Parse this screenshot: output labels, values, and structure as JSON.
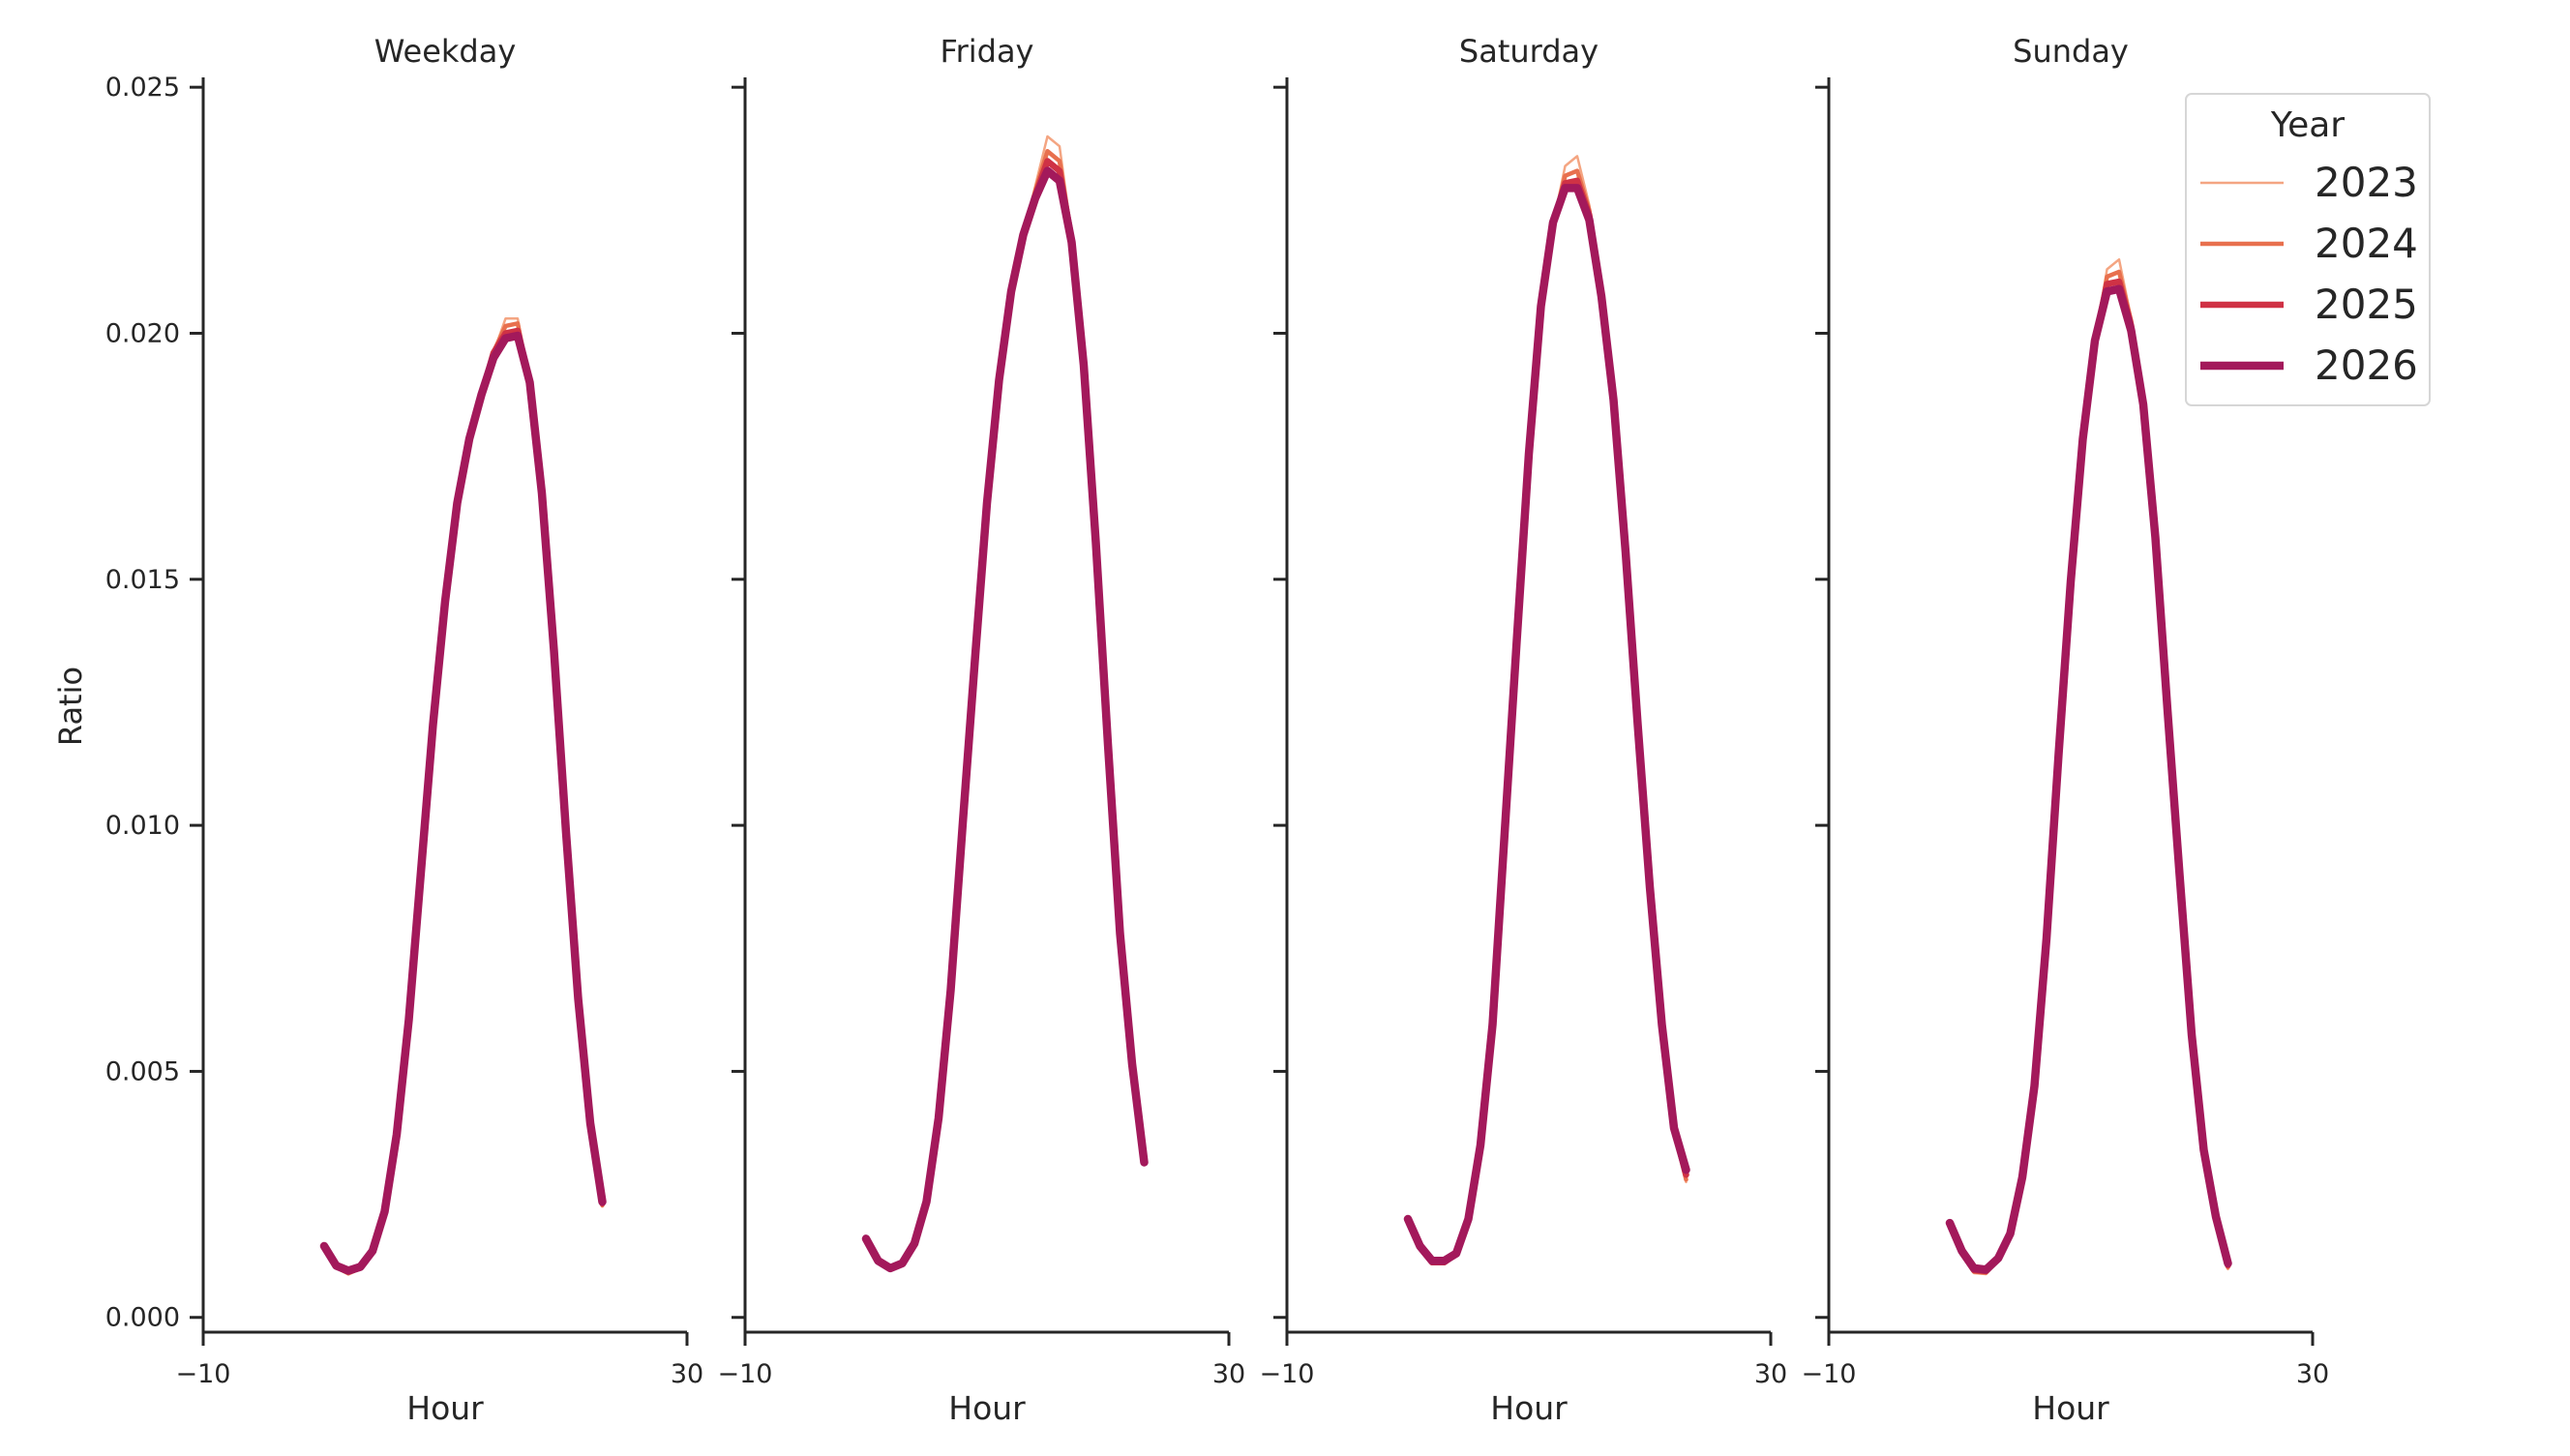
{
  "chart_data": {
    "type": "line",
    "ylabel": "Ratio",
    "ylim": [
      -0.0003,
      0.0252
    ],
    "yticks": [
      0,
      0.005,
      0.01,
      0.015,
      0.02,
      0.025
    ],
    "ytick_labels": [
      "0.000",
      "0.005",
      "0.010",
      "0.015",
      "0.020",
      "0.025"
    ],
    "xlim": [
      -10,
      30
    ],
    "xticks": [
      -10,
      30
    ],
    "xtick_labels": [
      "−10",
      "30"
    ],
    "xlabel": "Hour",
    "sharey": true,
    "hours": [
      0,
      1,
      2,
      3,
      4,
      5,
      6,
      7,
      8,
      9,
      10,
      11,
      12,
      13,
      14,
      15,
      16,
      17,
      18,
      19,
      20,
      21,
      22,
      23
    ],
    "legend": {
      "title": "Year",
      "placement": "top-right",
      "entries": [
        {
          "name": "2023",
          "color": "#f4a582",
          "width": 2.5
        },
        {
          "name": "2024",
          "color": "#e8704e",
          "width": 4.5
        },
        {
          "name": "2025",
          "color": "#cf3245",
          "width": 6.5
        },
        {
          "name": "2026",
          "color": "#a3195b",
          "width": 8.5
        }
      ]
    },
    "panels": [
      {
        "title": "Weekday",
        "series": [
          {
            "name": "2023",
            "values": [
              0.0014,
              0.001,
              0.00087,
              0.00098,
              0.0013,
              0.0021,
              0.00365,
              0.006,
              0.009,
              0.012,
              0.0145,
              0.0165,
              0.0178,
              0.0187,
              0.0196,
              0.0203,
              0.0203,
              0.019,
              0.0167,
              0.0135,
              0.0098,
              0.0064,
              0.00385,
              0.00225
            ]
          },
          {
            "name": "2024",
            "values": [
              0.00142,
              0.00102,
              0.0009,
              0.001,
              0.00132,
              0.00212,
              0.00368,
              0.00602,
              0.00902,
              0.01202,
              0.01452,
              0.01652,
              0.01782,
              0.01872,
              0.01962,
              0.02015,
              0.0202,
              0.019,
              0.0167,
              0.01352,
              0.00982,
              0.00642,
              0.00388,
              0.00228
            ]
          },
          {
            "name": "2025",
            "values": [
              0.00143,
              0.00104,
              0.00093,
              0.00101,
              0.00134,
              0.00214,
              0.0037,
              0.00604,
              0.00904,
              0.01204,
              0.01454,
              0.01654,
              0.01784,
              0.01874,
              0.0196,
              0.02,
              0.02005,
              0.019,
              0.01672,
              0.01354,
              0.00984,
              0.00645,
              0.00392,
              0.00232
            ]
          },
          {
            "name": "2026",
            "values": [
              0.00145,
              0.00105,
              0.00095,
              0.00103,
              0.00135,
              0.00215,
              0.00372,
              0.00605,
              0.00905,
              0.01205,
              0.01455,
              0.01655,
              0.01785,
              0.01875,
              0.0195,
              0.0199,
              0.01995,
              0.019,
              0.01675,
              0.01355,
              0.00985,
              0.00648,
              0.00395,
              0.00235
            ]
          }
        ]
      },
      {
        "title": "Friday",
        "series": [
          {
            "name": "2023",
            "values": [
              0.00155,
              0.0011,
              0.00095,
              0.00105,
              0.00145,
              0.0023,
              0.004,
              0.0066,
              0.01,
              0.0133,
              0.0165,
              0.019,
              0.0208,
              0.022,
              0.023,
              0.024,
              0.0238,
              0.022,
              0.0193,
              0.0157,
              0.0116,
              0.0077,
              0.005,
              0.0031
            ]
          },
          {
            "name": "2024",
            "values": [
              0.00157,
              0.00112,
              0.00097,
              0.00107,
              0.00147,
              0.00232,
              0.00402,
              0.00662,
              0.01002,
              0.01332,
              0.01652,
              0.01902,
              0.02082,
              0.022,
              0.0229,
              0.0237,
              0.0235,
              0.02195,
              0.01932,
              0.01572,
              0.01162,
              0.00772,
              0.00505,
              0.00312
            ]
          },
          {
            "name": "2025",
            "values": [
              0.00159,
              0.00114,
              0.00099,
              0.00109,
              0.00149,
              0.00234,
              0.00404,
              0.00664,
              0.01004,
              0.01334,
              0.01654,
              0.01904,
              0.02084,
              0.022,
              0.0228,
              0.0235,
              0.0233,
              0.0219,
              0.01934,
              0.01574,
              0.01164,
              0.00775,
              0.0051,
              0.00314
            ]
          },
          {
            "name": "2026",
            "values": [
              0.0016,
              0.00115,
              0.001,
              0.0011,
              0.0015,
              0.00235,
              0.00405,
              0.00665,
              0.01005,
              0.01335,
              0.01655,
              0.01905,
              0.02085,
              0.022,
              0.02275,
              0.0233,
              0.0231,
              0.02185,
              0.01935,
              0.01575,
              0.01165,
              0.0078,
              0.00515,
              0.00315
            ]
          }
        ]
      },
      {
        "title": "Saturday",
        "series": [
          {
            "name": "2023",
            "values": [
              0.00195,
              0.00138,
              0.00108,
              0.00108,
              0.00125,
              0.00195,
              0.00345,
              0.0059,
              0.0098,
              0.0137,
              0.0175,
              0.0205,
              0.0222,
              0.0234,
              0.0236,
              0.0226,
              0.0207,
              0.0186,
              0.0155,
              0.012,
              0.0087,
              0.0059,
              0.0038,
              0.00275
            ]
          },
          {
            "name": "2024",
            "values": [
              0.00197,
              0.0014,
              0.0011,
              0.0011,
              0.00127,
              0.00197,
              0.00347,
              0.00592,
              0.00982,
              0.01372,
              0.01752,
              0.02052,
              0.02222,
              0.0232,
              0.0233,
              0.0225,
              0.02072,
              0.01862,
              0.01552,
              0.01202,
              0.00872,
              0.00592,
              0.00382,
              0.0028
            ]
          },
          {
            "name": "2025",
            "values": [
              0.00198,
              0.00142,
              0.00112,
              0.00112,
              0.00129,
              0.00199,
              0.00349,
              0.00594,
              0.00984,
              0.01374,
              0.01754,
              0.02054,
              0.02224,
              0.02305,
              0.0231,
              0.0224,
              0.02074,
              0.01864,
              0.01554,
              0.01204,
              0.00874,
              0.00594,
              0.00384,
              0.0029
            ]
          },
          {
            "name": "2026",
            "values": [
              0.002,
              0.00145,
              0.00115,
              0.00115,
              0.0013,
              0.002,
              0.0035,
              0.00595,
              0.00985,
              0.01375,
              0.01755,
              0.02055,
              0.02225,
              0.02295,
              0.02295,
              0.0223,
              0.02075,
              0.01865,
              0.01555,
              0.01205,
              0.00875,
              0.00595,
              0.00385,
              0.003
            ]
          }
        ]
      },
      {
        "title": "Sunday",
        "series": [
          {
            "name": "2023",
            "values": [
              0.00185,
              0.00128,
              0.0009,
              0.00088,
              0.00115,
              0.00165,
              0.0028,
              0.00465,
              0.00765,
              0.0114,
              0.0149,
              0.0178,
              0.0198,
              0.0213,
              0.0215,
              0.0203,
              0.0185,
              0.0158,
              0.0123,
              0.00895,
              0.0057,
              0.00335,
              0.00195,
              0.00098
            ]
          },
          {
            "name": "2024",
            "values": [
              0.00188,
              0.0013,
              0.00093,
              0.00091,
              0.00117,
              0.00167,
              0.00282,
              0.00467,
              0.00767,
              0.01142,
              0.01492,
              0.01782,
              0.01982,
              0.02115,
              0.02125,
              0.02025,
              0.01852,
              0.01582,
              0.01232,
              0.00897,
              0.00572,
              0.00337,
              0.00198,
              0.00102
            ]
          },
          {
            "name": "2025",
            "values": [
              0.0019,
              0.00132,
              0.00096,
              0.00094,
              0.00119,
              0.00169,
              0.00284,
              0.00469,
              0.00769,
              0.01144,
              0.01494,
              0.01784,
              0.01984,
              0.021,
              0.02105,
              0.02015,
              0.01854,
              0.01584,
              0.01234,
              0.00899,
              0.00574,
              0.00339,
              0.002,
              0.00106
            ]
          },
          {
            "name": "2026",
            "values": [
              0.00192,
              0.00135,
              0.001,
              0.00097,
              0.0012,
              0.0017,
              0.00285,
              0.0047,
              0.0077,
              0.01145,
              0.01495,
              0.01785,
              0.01985,
              0.02085,
              0.0209,
              0.02005,
              0.01855,
              0.01585,
              0.01235,
              0.009,
              0.00575,
              0.0034,
              0.00205,
              0.0011
            ]
          }
        ]
      }
    ]
  }
}
